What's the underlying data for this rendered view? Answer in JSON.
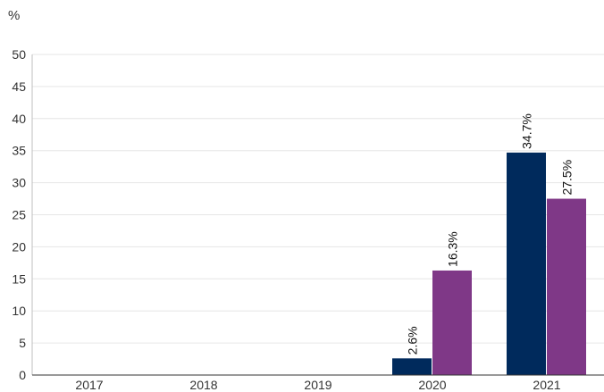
{
  "chart_data": {
    "type": "bar",
    "unit_label": "%",
    "categories": [
      "2017",
      "2018",
      "2019",
      "2020",
      "2021"
    ],
    "series": [
      {
        "color": "#002a5c",
        "values": [
          null,
          null,
          null,
          2.6,
          34.7
        ],
        "labels": [
          "",
          "",
          "",
          "2.6%",
          "34.7%"
        ]
      },
      {
        "color": "#7f3887",
        "values": [
          null,
          null,
          null,
          16.3,
          27.5
        ],
        "labels": [
          "",
          "",
          "",
          "16.3%",
          "27.5%"
        ]
      }
    ],
    "ylim": [
      0,
      50
    ],
    "yticks": [
      0,
      5,
      10,
      15,
      20,
      25,
      30,
      35,
      40,
      45,
      50
    ],
    "grid": true,
    "legend": "none"
  }
}
